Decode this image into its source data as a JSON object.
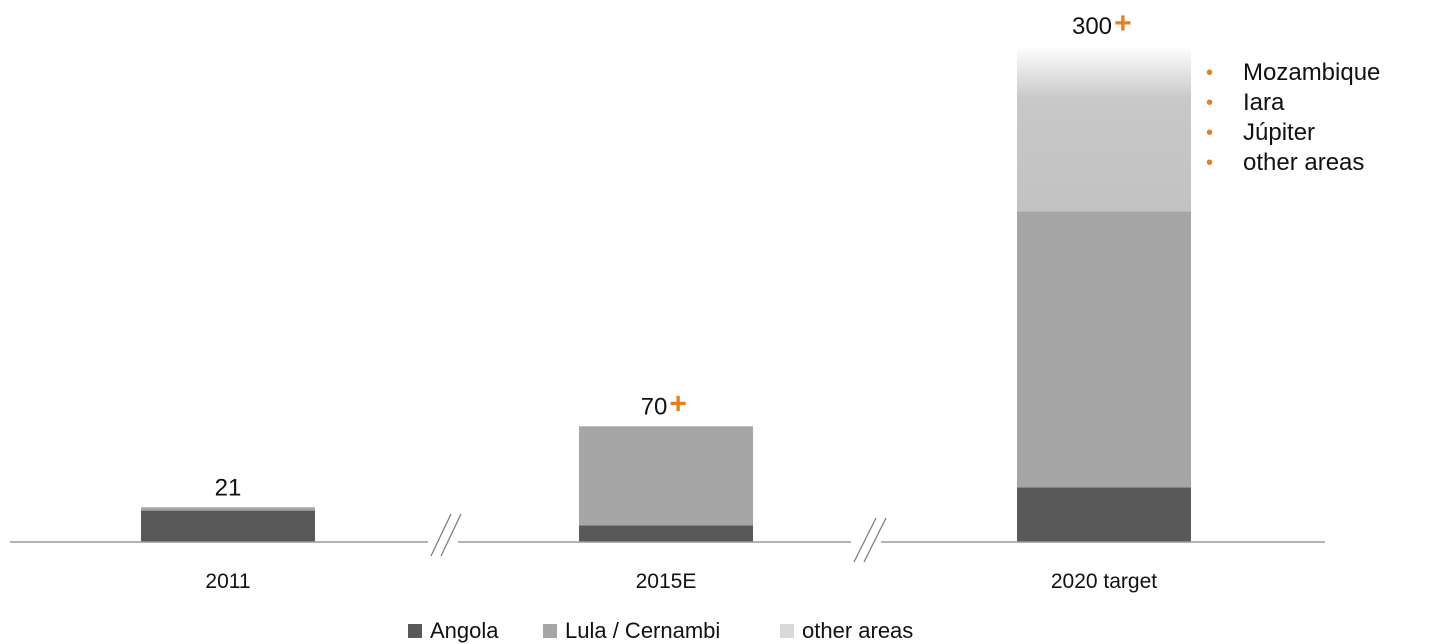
{
  "chart_data": {
    "type": "bar",
    "stacked": true,
    "categories": [
      "2011",
      "2015E",
      "2020 target"
    ],
    "series": [
      {
        "name": "Angola",
        "values": [
          19,
          10,
          33
        ],
        "color": "#595959"
      },
      {
        "name": "Lula / Cernambi",
        "values": [
          2,
          60,
          167
        ],
        "color": "#a6a6a6"
      },
      {
        "name": "other areas",
        "values": [
          0,
          0,
          100
        ],
        "color": "#c8c8c8"
      }
    ],
    "totals": [
      "21",
      "70",
      "300"
    ],
    "plus_marks": [
      false,
      true,
      true
    ],
    "plus_symbol": "+",
    "plus_color": "#e87c1e",
    "axis_breaks": true,
    "legend_position": "bottom",
    "grid": false,
    "ylim": [
      0,
      330
    ]
  },
  "annotation": {
    "items": [
      "Mozambique",
      "Iara",
      "Júpiter",
      "other areas"
    ],
    "bullet": "•",
    "bullet_color": "#e87c1e"
  },
  "legend": {
    "items": [
      {
        "label": "Angola",
        "color": "#595959"
      },
      {
        "label": "Lula / Cernambi",
        "color": "#a6a6a6"
      },
      {
        "label": "other areas",
        "color": "#d9d9d9"
      }
    ]
  }
}
